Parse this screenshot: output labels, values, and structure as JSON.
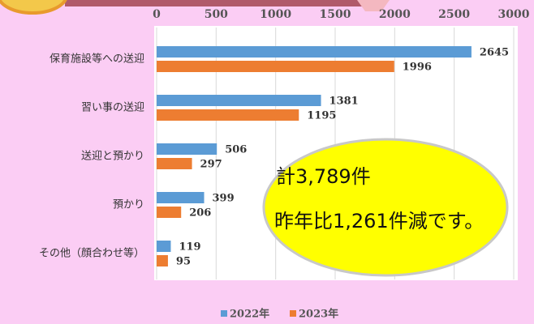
{
  "chart_data": {
    "type": "bar",
    "orientation": "horizontal",
    "categories": [
      "保育施設等への送迎",
      "習い事の送迎",
      "送迎と預かり",
      "預かり",
      "その他（顔合わせ等）"
    ],
    "series": [
      {
        "name": "2022年",
        "color": "#5b9bd5",
        "values": [
          2645,
          1381,
          506,
          399,
          119
        ]
      },
      {
        "name": "2023年",
        "color": "#ed7d31",
        "values": [
          1996,
          1195,
          297,
          206,
          95
        ]
      }
    ],
    "xlim": [
      0,
      3000
    ],
    "xticks": [
      0,
      500,
      1000,
      1500,
      2000,
      2500,
      3000
    ],
    "grid": true,
    "legend": "bottom",
    "annotations": [
      "計3,789件",
      "昨年比1,261件減です。"
    ]
  }
}
